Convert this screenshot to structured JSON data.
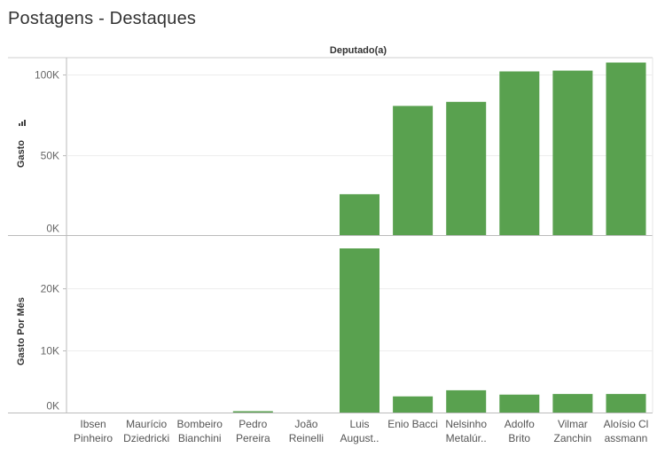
{
  "title": "Postagens - Destaques",
  "chart_data": {
    "type": "bar",
    "column_header": "Deputado(a)",
    "categories": [
      [
        "Ibsen",
        "Pinheiro"
      ],
      [
        "Maurício",
        "Dziedricki"
      ],
      [
        "Bombeiro",
        "Bianchini"
      ],
      [
        "Pedro",
        "Pereira"
      ],
      [
        "João",
        "Reinelli"
      ],
      [
        "Luis",
        "August.."
      ],
      [
        "Enio Bacci"
      ],
      [
        "Nelsinho",
        "Metalúr.."
      ],
      [
        "Adolfo",
        "Brito"
      ],
      [
        "Vilmar",
        "Zanchin"
      ],
      [
        "Aloísio Cl",
        "assmann"
      ]
    ],
    "series": [
      {
        "name": "Gasto",
        "values": [
          0,
          0,
          0,
          0,
          0,
          25500,
          80500,
          83000,
          102000,
          102500,
          107500
        ],
        "ylim": [
          0,
          110000
        ],
        "ticks": [
          0,
          50000,
          100000
        ],
        "tick_labels": [
          "0K",
          "50K",
          "100K"
        ]
      },
      {
        "name": "Gasto Por Mês",
        "values": [
          0,
          0,
          0,
          200,
          0,
          26500,
          2600,
          3600,
          2900,
          3000,
          3000
        ],
        "ylim": [
          0,
          28500
        ],
        "ticks": [
          0,
          10000,
          20000
        ],
        "tick_labels": [
          "0K",
          "10K",
          "20K"
        ]
      }
    ],
    "bar_color": "#59a14f",
    "grid": true
  }
}
